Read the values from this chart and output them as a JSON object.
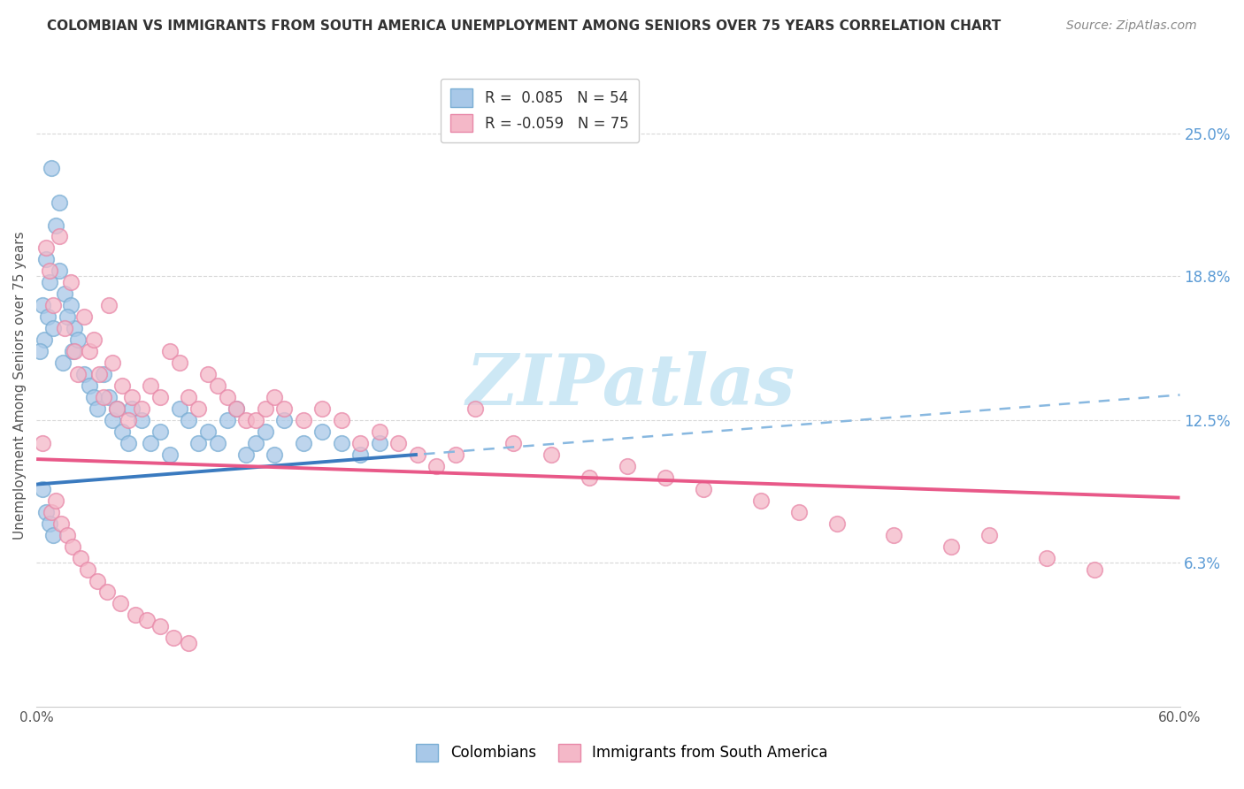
{
  "title": "COLOMBIAN VS IMMIGRANTS FROM SOUTH AMERICA UNEMPLOYMENT AMONG SENIORS OVER 75 YEARS CORRELATION CHART",
  "source": "Source: ZipAtlas.com",
  "ylabel": "Unemployment Among Seniors over 75 years",
  "xlim": [
    0.0,
    0.6
  ],
  "ylim": [
    0.0,
    0.28
  ],
  "xticks": [
    0.0,
    0.1,
    0.2,
    0.3,
    0.4,
    0.5,
    0.6
  ],
  "xtick_labels": [
    "0.0%",
    "",
    "",
    "",
    "",
    "",
    "60.0%"
  ],
  "ytick_right_vals": [
    0.063,
    0.125,
    0.188,
    0.25
  ],
  "ytick_right_labels": [
    "6.3%",
    "12.5%",
    "18.8%",
    "25.0%"
  ],
  "legend_R1": "R =  0.085",
  "legend_N1": "N = 54",
  "legend_R2": "R = -0.059",
  "legend_N2": "N = 75",
  "blue_color": "#a8c8e8",
  "pink_color": "#f4b8c8",
  "blue_edge": "#7aaed4",
  "pink_edge": "#e888a8",
  "trend_blue": "#3a7abf",
  "trend_pink": "#e85888",
  "trend_blue_dash": "#88b8e0",
  "watermark": "ZIPatlas",
  "watermark_color": "#cde8f5",
  "background_color": "#ffffff",
  "grid_color": "#d8d8d8",
  "col_intercept": 0.097,
  "col_slope": 0.065,
  "imm_intercept": 0.108,
  "imm_slope": -0.028,
  "colombians_x": [
    0.008,
    0.01,
    0.012,
    0.005,
    0.007,
    0.003,
    0.006,
    0.004,
    0.009,
    0.002,
    0.015,
    0.018,
    0.012,
    0.02,
    0.016,
    0.014,
    0.019,
    0.022,
    0.025,
    0.028,
    0.03,
    0.032,
    0.035,
    0.038,
    0.04,
    0.042,
    0.045,
    0.048,
    0.05,
    0.055,
    0.06,
    0.065,
    0.07,
    0.075,
    0.08,
    0.085,
    0.09,
    0.095,
    0.1,
    0.105,
    0.11,
    0.115,
    0.12,
    0.125,
    0.13,
    0.14,
    0.15,
    0.16,
    0.17,
    0.18,
    0.003,
    0.005,
    0.007,
    0.009
  ],
  "colombians_y": [
    0.235,
    0.21,
    0.22,
    0.195,
    0.185,
    0.175,
    0.17,
    0.16,
    0.165,
    0.155,
    0.18,
    0.175,
    0.19,
    0.165,
    0.17,
    0.15,
    0.155,
    0.16,
    0.145,
    0.14,
    0.135,
    0.13,
    0.145,
    0.135,
    0.125,
    0.13,
    0.12,
    0.115,
    0.13,
    0.125,
    0.115,
    0.12,
    0.11,
    0.13,
    0.125,
    0.115,
    0.12,
    0.115,
    0.125,
    0.13,
    0.11,
    0.115,
    0.12,
    0.11,
    0.125,
    0.115,
    0.12,
    0.115,
    0.11,
    0.115,
    0.095,
    0.085,
    0.08,
    0.075
  ],
  "immigrants_x": [
    0.003,
    0.005,
    0.007,
    0.009,
    0.012,
    0.015,
    0.018,
    0.02,
    0.022,
    0.025,
    0.028,
    0.03,
    0.033,
    0.035,
    0.038,
    0.04,
    0.042,
    0.045,
    0.048,
    0.05,
    0.055,
    0.06,
    0.065,
    0.07,
    0.075,
    0.08,
    0.085,
    0.09,
    0.095,
    0.1,
    0.105,
    0.11,
    0.115,
    0.12,
    0.125,
    0.13,
    0.14,
    0.15,
    0.16,
    0.17,
    0.18,
    0.19,
    0.2,
    0.21,
    0.22,
    0.23,
    0.25,
    0.27,
    0.29,
    0.31,
    0.33,
    0.35,
    0.38,
    0.4,
    0.42,
    0.45,
    0.48,
    0.5,
    0.53,
    0.555,
    0.008,
    0.01,
    0.013,
    0.016,
    0.019,
    0.023,
    0.027,
    0.032,
    0.037,
    0.044,
    0.052,
    0.058,
    0.065,
    0.072,
    0.08
  ],
  "immigrants_y": [
    0.115,
    0.2,
    0.19,
    0.175,
    0.205,
    0.165,
    0.185,
    0.155,
    0.145,
    0.17,
    0.155,
    0.16,
    0.145,
    0.135,
    0.175,
    0.15,
    0.13,
    0.14,
    0.125,
    0.135,
    0.13,
    0.14,
    0.135,
    0.155,
    0.15,
    0.135,
    0.13,
    0.145,
    0.14,
    0.135,
    0.13,
    0.125,
    0.125,
    0.13,
    0.135,
    0.13,
    0.125,
    0.13,
    0.125,
    0.115,
    0.12,
    0.115,
    0.11,
    0.105,
    0.11,
    0.13,
    0.115,
    0.11,
    0.1,
    0.105,
    0.1,
    0.095,
    0.09,
    0.085,
    0.08,
    0.075,
    0.07,
    0.075,
    0.065,
    0.06,
    0.085,
    0.09,
    0.08,
    0.075,
    0.07,
    0.065,
    0.06,
    0.055,
    0.05,
    0.045,
    0.04,
    0.038,
    0.035,
    0.03,
    0.028
  ]
}
